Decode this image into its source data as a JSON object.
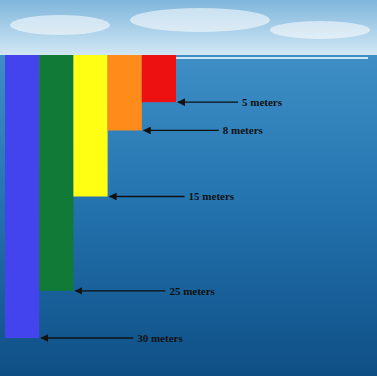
{
  "chart_data": {
    "type": "bar",
    "categories": [
      null,
      null,
      null,
      null,
      null
    ],
    "values": [
      30,
      25,
      15,
      8,
      5
    ],
    "value_labels": [
      "30 meters",
      "25 meters",
      "15 meters",
      "8 meters",
      "5 meters"
    ],
    "colors": [
      "#4444ee",
      "#117a36",
      "#ffff14",
      "#ff8c1a",
      "#ee1111"
    ],
    "ylim": [
      0,
      30
    ],
    "data_labels": true,
    "tick_labels": false
  }
}
